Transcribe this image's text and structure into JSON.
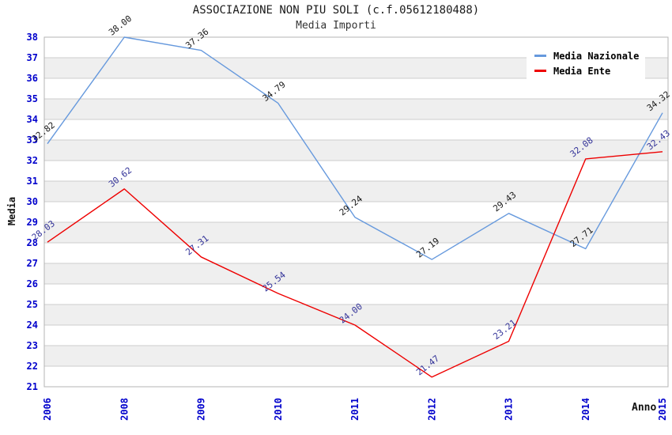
{
  "title": "ASSOCIAZIONE NON PIU SOLI (c.f.05612180488)",
  "subtitle": "Media Importi",
  "chart_data": {
    "type": "line",
    "title": "ASSOCIAZIONE NON PIU SOLI (c.f.05612180488)",
    "subtitle": "Media Importi",
    "xlabel": "Anno",
    "ylabel": "Media",
    "categories": [
      "2006",
      "2008",
      "2009",
      "2010",
      "2011",
      "2012",
      "2013",
      "2014",
      "2015"
    ],
    "series": [
      {
        "name": "Media Nazionale",
        "color": "#6699dd",
        "label_color": "#1a1a1a",
        "values": [
          32.82,
          38.0,
          37.36,
          34.79,
          29.24,
          27.19,
          29.43,
          27.71,
          34.32
        ]
      },
      {
        "name": "Media Ente",
        "color": "#ee0000",
        "label_color": "#333399",
        "values": [
          28.03,
          30.62,
          27.31,
          25.54,
          24.0,
          21.47,
          23.21,
          32.08,
          32.43
        ]
      }
    ],
    "ylim": [
      21,
      38
    ],
    "ytick_step": 1,
    "grid": true,
    "legend_position": "top-right",
    "axis_colors": {
      "tick_color": "#0000cc",
      "grid_color": "#cccccc",
      "band_color": "#efefef",
      "border_color": "#b5b5b5"
    }
  }
}
